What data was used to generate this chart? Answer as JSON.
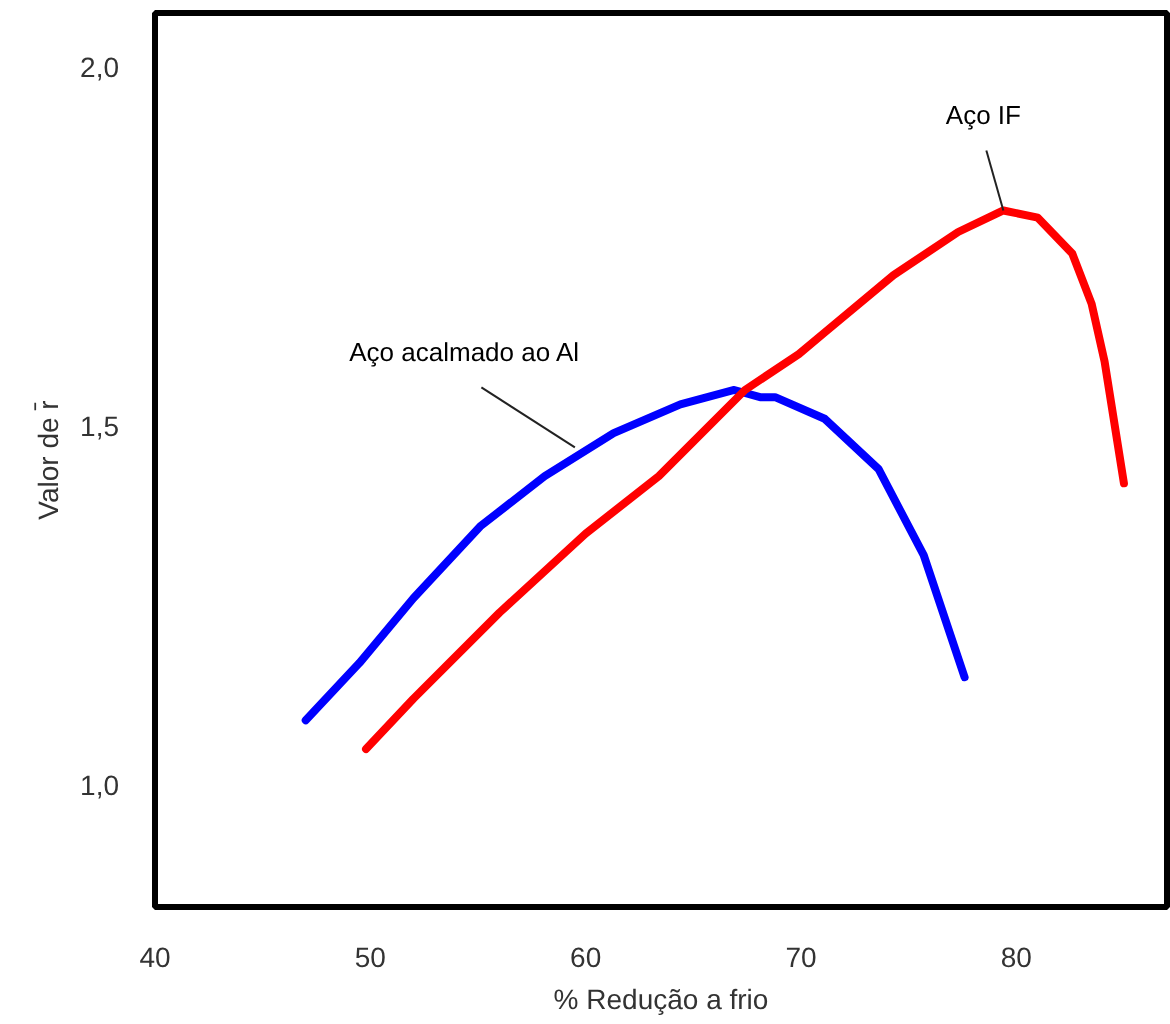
{
  "chart_data": {
    "type": "line",
    "xlabel": "% Redução a frio",
    "ylabel": "Valor de r̄",
    "xlim": [
      40,
      87
    ],
    "ylim": [
      0.83,
      2.075
    ],
    "xticks": [
      40,
      50,
      60,
      70,
      80
    ],
    "yticks": [
      {
        "value": 1.0,
        "label": "1,0"
      },
      {
        "value": 1.5,
        "label": "1,5"
      },
      {
        "value": 2.0,
        "label": "2,0"
      }
    ],
    "grid": false,
    "marker": "none",
    "line_style": "solid",
    "series": [
      {
        "color": "#0000ff",
        "x": [
          47.0,
          49.5,
          52.0,
          55.1,
          58.1,
          61.3,
          64.4,
          66.9,
          68.1,
          68.8,
          71.1,
          73.6,
          75.7,
          77.6
        ],
        "values": [
          1.09,
          1.17,
          1.26,
          1.36,
          1.43,
          1.49,
          1.53,
          1.55,
          1.54,
          1.54,
          1.51,
          1.44,
          1.32,
          1.15
        ]
      },
      {
        "color": "#ff0000",
        "x": [
          49.8,
          52.0,
          56.0,
          60.0,
          63.4,
          67.4,
          69.9,
          71.1,
          74.3,
          77.3,
          79.4,
          81.0,
          82.6,
          83.5,
          84.1,
          85.0
        ],
        "values": [
          1.05,
          1.12,
          1.24,
          1.35,
          1.43,
          1.55,
          1.6,
          1.63,
          1.71,
          1.77,
          1.8,
          1.79,
          1.74,
          1.67,
          1.59,
          1.42
        ]
      }
    ],
    "annotations": [
      {
        "text": "Aço acalmado ao Al",
        "x": 59.5,
        "y": 1.47
      },
      {
        "text": "Aço IF",
        "x": 79.4,
        "y": 1.8
      }
    ]
  }
}
